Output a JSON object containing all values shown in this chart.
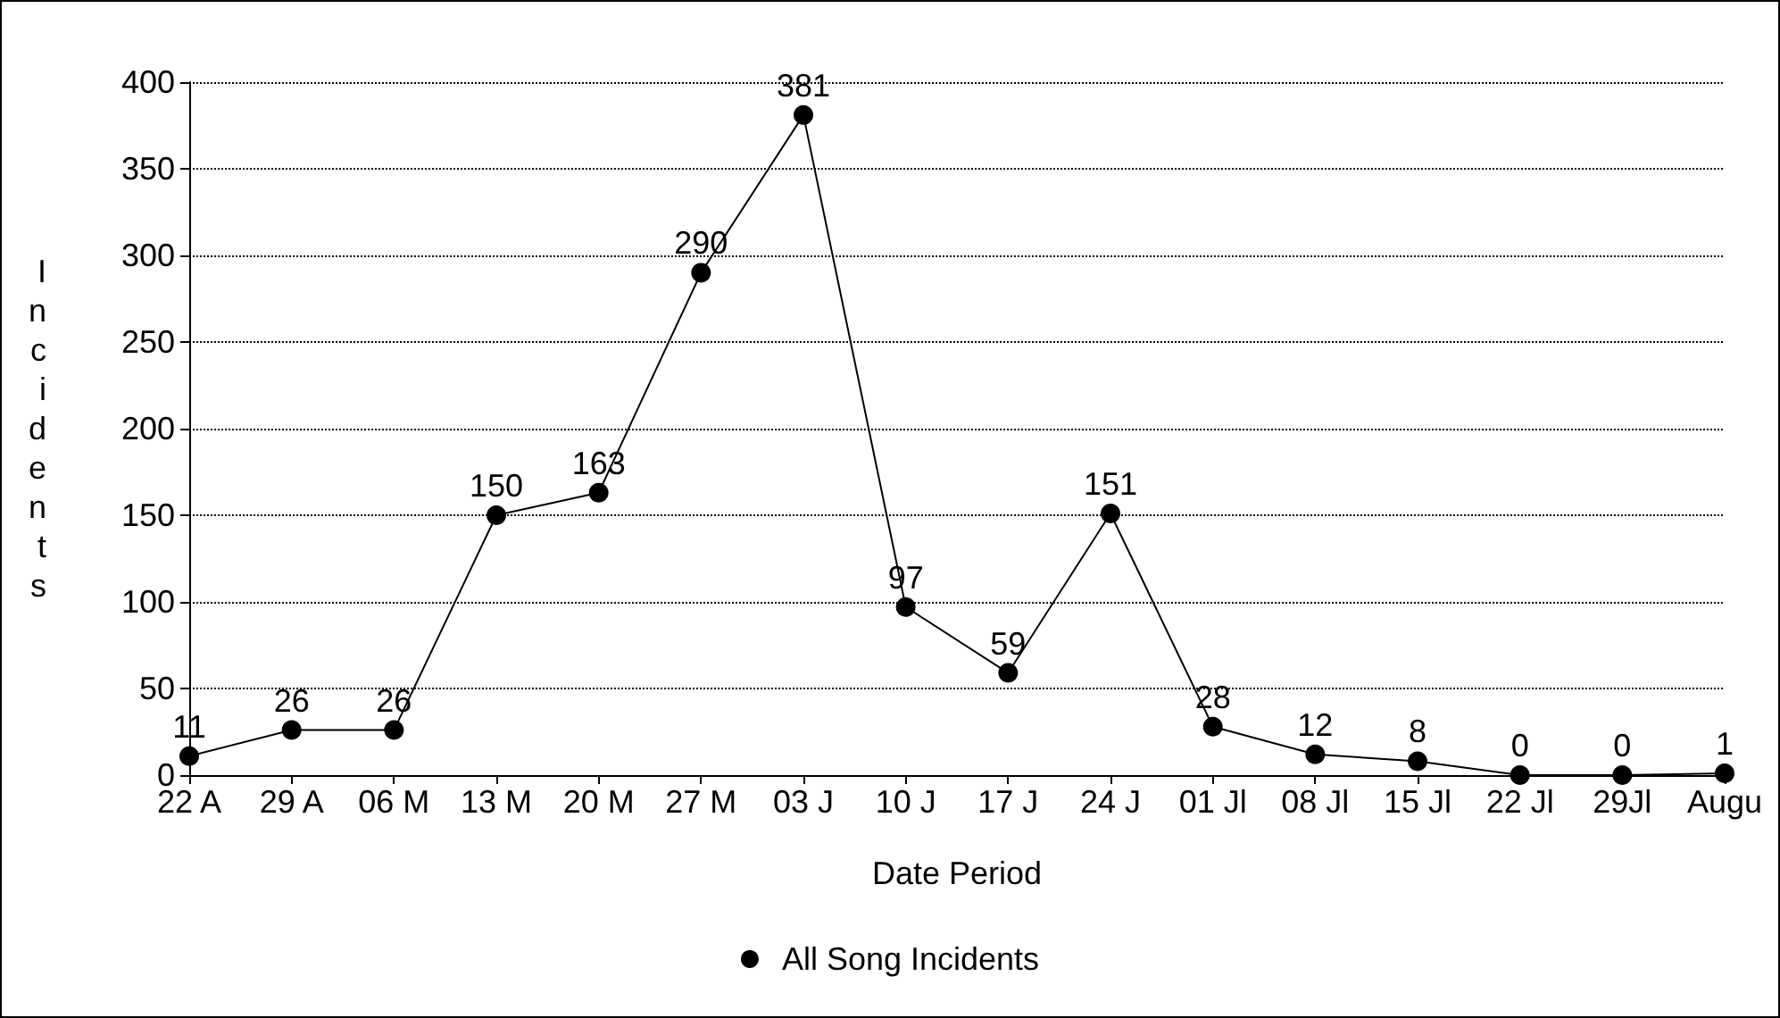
{
  "chart_data": {
    "type": "line",
    "xlabel": "Date Period",
    "ylabel": "Incidents",
    "categories": [
      "22 A",
      "29 A",
      "06 M",
      "13 M",
      "20 M",
      "27 M",
      "03 J",
      "10 J",
      "17 J",
      "24 J",
      "01 Jl",
      "08 Jl",
      "15 Jl",
      "22 Jl",
      "29Jl",
      "Augu"
    ],
    "series": [
      {
        "name": "All Song Incidents",
        "color": "#000000",
        "values": [
          11,
          26,
          26,
          150,
          163,
          290,
          381,
          97,
          59,
          151,
          28,
          12,
          8,
          0,
          0,
          1
        ]
      }
    ],
    "ylim": [
      0,
      400
    ],
    "yticks": [
      0,
      50,
      100,
      150,
      200,
      250,
      300,
      350,
      400
    ],
    "grid": "y",
    "legend": "bottom",
    "marker": "circle",
    "line_style": "solid",
    "data_labels": true
  }
}
